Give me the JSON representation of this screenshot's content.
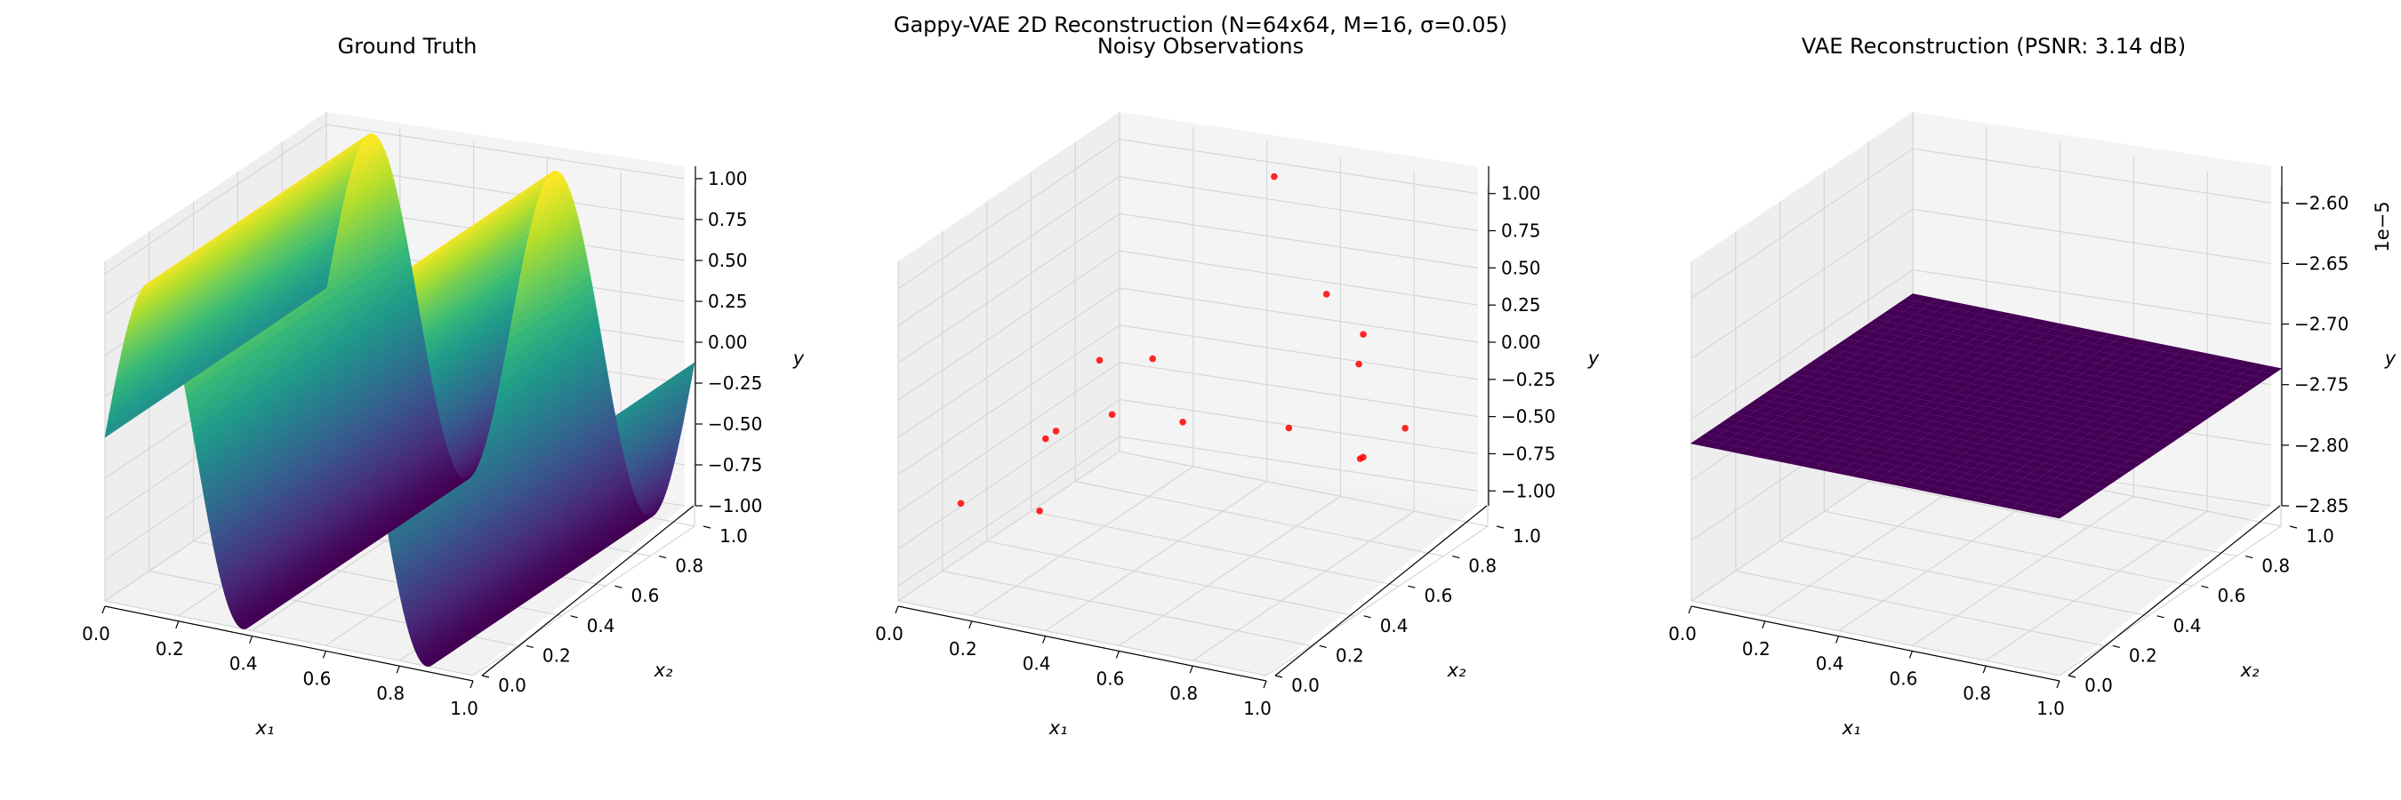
{
  "figure": {
    "suptitle": "Gappy-VAE 2D Reconstruction (N=64x64, M=16, σ=0.05)"
  },
  "colors": {
    "pane": "#f2f2f2",
    "grid": "#d6d6d6",
    "axis": "#000000",
    "points": "#ff0000",
    "flat_surface": "#440154"
  },
  "chart_data": [
    {
      "type": "surface",
      "title": "Ground Truth",
      "xlabel": "x₁",
      "ylabel": "x₂",
      "zlabel": "y",
      "xlim": [
        0,
        1
      ],
      "ylim": [
        0,
        1
      ],
      "zlim": [
        -1,
        1
      ],
      "xticks": [
        "0.0",
        "0.2",
        "0.4",
        "0.6",
        "0.8",
        "1.0"
      ],
      "yticks": [
        "0.0",
        "0.2",
        "0.4",
        "0.6",
        "0.8",
        "1.0"
      ],
      "zticks": [
        "1.00",
        "0.75",
        "0.50",
        "0.25",
        "0.00",
        "−0.25",
        "−0.50",
        "−0.75",
        "−1.00"
      ],
      "colormap": "viridis",
      "function": "y = sin(4πx₁)",
      "grid": true
    },
    {
      "type": "scatter",
      "title": "Noisy Observations",
      "xlabel": "x₁",
      "ylabel": "x₂",
      "zlabel": "y",
      "xlim": [
        0,
        1
      ],
      "ylim": [
        0,
        1
      ],
      "zlim": [
        -1.1,
        1.1
      ],
      "xticks": [
        "0.0",
        "0.2",
        "0.4",
        "0.6",
        "0.8",
        "1.0"
      ],
      "yticks": [
        "0.0",
        "0.2",
        "0.4",
        "0.6",
        "0.8",
        "1.0"
      ],
      "zticks": [
        "1.00",
        "0.75",
        "0.50",
        "0.25",
        "0.00",
        "−0.25",
        "−0.50",
        "−0.75",
        "−1.00"
      ],
      "color": "#ff0000",
      "grid": true,
      "points": [
        {
          "x": 0.05,
          "y": 0.2,
          "z": -0.62
        },
        {
          "x": 0.27,
          "y": 0.19,
          "z": -0.55
        },
        {
          "x": 0.22,
          "y": 0.3,
          "z": -0.2
        },
        {
          "x": 0.08,
          "y": 0.58,
          "z": -0.5
        },
        {
          "x": 0.1,
          "y": 0.8,
          "z": -0.6
        },
        {
          "x": 0.09,
          "y": 0.76,
          "z": -0.2
        },
        {
          "x": 0.15,
          "y": 0.9,
          "z": -0.3
        },
        {
          "x": 0.28,
          "y": 0.82,
          "z": -0.58
        },
        {
          "x": 0.52,
          "y": 0.9,
          "z": -0.58
        },
        {
          "x": 0.83,
          "y": 0.72,
          "z": -0.44
        },
        {
          "x": 0.81,
          "y": 0.74,
          "z": -0.48
        },
        {
          "x": 0.92,
          "y": 0.76,
          "z": -0.24
        },
        {
          "x": 0.68,
          "y": 0.95,
          "z": -0.12
        },
        {
          "x": 0.58,
          "y": 0.97,
          "z": 0.28
        },
        {
          "x": 0.68,
          "y": 0.97,
          "z": 0.06
        },
        {
          "x": 0.42,
          "y": 1.0,
          "z": 0.96
        }
      ]
    },
    {
      "type": "surface",
      "title": "VAE Reconstruction (PSNR: 3.14 dB)",
      "xlabel": "x₁",
      "ylabel": "x₂",
      "zlabel": "y",
      "offset_text": "1e−5",
      "xlim": [
        0,
        1
      ],
      "ylim": [
        0,
        1
      ],
      "zlim": [
        -2.85,
        -2.58
      ],
      "xticks": [
        "0.0",
        "0.2",
        "0.4",
        "0.6",
        "0.8",
        "1.0"
      ],
      "yticks": [
        "0.0",
        "0.2",
        "0.4",
        "0.6",
        "0.8",
        "1.0"
      ],
      "zticks": [
        "−2.60",
        "−2.65",
        "−2.70",
        "−2.75",
        "−2.80",
        "−2.85"
      ],
      "z_value": -2.72,
      "color": "#440154",
      "grid": true
    }
  ]
}
